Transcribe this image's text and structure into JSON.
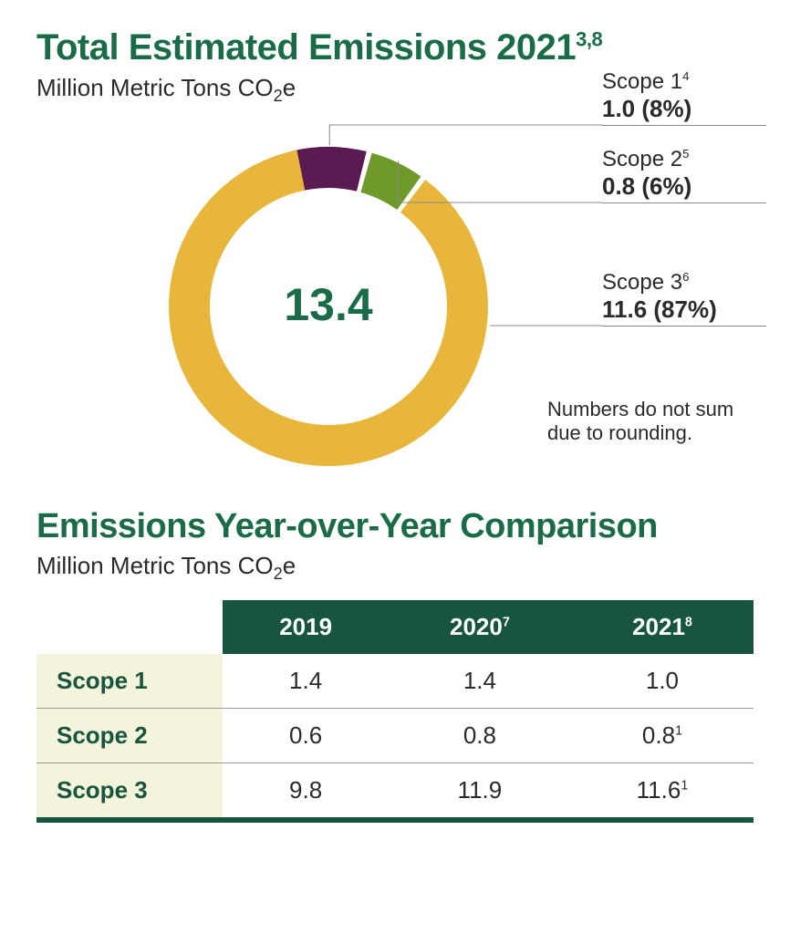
{
  "colors": {
    "brand_green": "#1a6b48",
    "title_green": "#1a6b48",
    "text_dark": "#2a2a2a",
    "donut_scope1": "#5a1a52",
    "donut_scope2": "#6e9a2a",
    "donut_scope3": "#e8b63a",
    "table_header_bg": "#17553e",
    "table_rowlabel_bg": "#f4f3db",
    "table_bottom_rule": "#17553e",
    "leader_line": "#888888"
  },
  "section1": {
    "title_main": "Total Estimated Emissions 2021",
    "title_sup": "3,8",
    "subtitle_pre": "Million Metric Tons CO",
    "subtitle_sub": "2",
    "subtitle_post": "e",
    "title_fontsize": 40,
    "subtitle_fontsize": 26
  },
  "donut": {
    "center_value": "13.4",
    "center_fontsize": 50,
    "center_color": "#1a6b48",
    "outer_radius": 175,
    "inner_radius": 130,
    "gap_deg": 2,
    "slices": [
      {
        "key": "scope1",
        "percent": 8,
        "color": "#5a1a52",
        "label": "Scope 1",
        "label_sup": "4",
        "value": "1.0 (8%)"
      },
      {
        "key": "scope2",
        "percent": 6,
        "color": "#6e9a2a",
        "label": "Scope 2",
        "label_sup": "5",
        "value": "0.8 (6%)"
      },
      {
        "key": "scope3",
        "percent": 87,
        "color": "#e8b63a",
        "label": "Scope 3",
        "label_sup": "6",
        "value": "11.6 (87%)"
      }
    ],
    "callout_label_fontsize": 24,
    "callout_value_fontsize": 26,
    "footnote": "Numbers do not sum\ndue to rounding.",
    "footnote_fontsize": 22
  },
  "section2": {
    "title": "Emissions Year-over-Year Comparison",
    "subtitle_pre": "Million Metric Tons CO",
    "subtitle_sub": "2",
    "subtitle_post": "e",
    "title_fontsize": 38,
    "subtitle_fontsize": 26
  },
  "table": {
    "columns": [
      {
        "label": "",
        "sup": ""
      },
      {
        "label": "2019",
        "sup": ""
      },
      {
        "label": "2020",
        "sup": "7"
      },
      {
        "label": "2021",
        "sup": "8"
      }
    ],
    "rows": [
      {
        "label": "Scope 1",
        "cells": [
          {
            "v": "1.4",
            "sup": ""
          },
          {
            "v": "1.4",
            "sup": ""
          },
          {
            "v": "1.0",
            "sup": ""
          }
        ]
      },
      {
        "label": "Scope 2",
        "cells": [
          {
            "v": "0.6",
            "sup": ""
          },
          {
            "v": "0.8",
            "sup": ""
          },
          {
            "v": "0.8",
            "sup": "1"
          }
        ]
      },
      {
        "label": "Scope 3",
        "cells": [
          {
            "v": "9.8",
            "sup": ""
          },
          {
            "v": "11.9",
            "sup": ""
          },
          {
            "v": "11.6",
            "sup": "1"
          }
        ]
      }
    ],
    "header_fontsize": 26,
    "cell_fontsize": 26,
    "rowlabel_color": "#17553e"
  }
}
